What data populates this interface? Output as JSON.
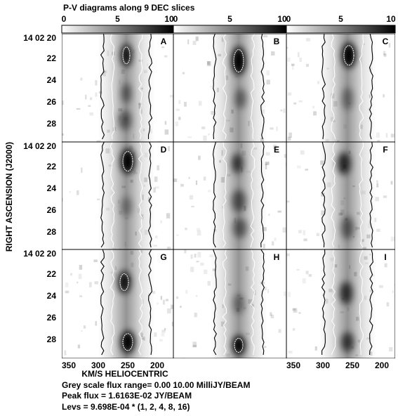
{
  "title": "P-V diagrams along 9 DEC slices",
  "colorbars": [
    {
      "labels": [
        "0",
        "5",
        "10"
      ]
    },
    {
      "labels": [
        "0",
        "5",
        "10"
      ]
    },
    {
      "labels": [
        "0",
        "5",
        "10"
      ]
    }
  ],
  "panels": [
    {
      "label": "A"
    },
    {
      "label": "B"
    },
    {
      "label": "C"
    },
    {
      "label": "D"
    },
    {
      "label": "E"
    },
    {
      "label": "F"
    },
    {
      "label": "G"
    },
    {
      "label": "H"
    },
    {
      "label": "I"
    }
  ],
  "y_axis": {
    "label": "RIGHT ASCENSION (J2000)",
    "rows": [
      [
        "14 02 20",
        "22",
        "24",
        "26",
        "28"
      ],
      [
        "14 02 20",
        "22",
        "24",
        "26",
        "28"
      ],
      [
        "14 02 20",
        "22",
        "24",
        "26",
        "28"
      ]
    ]
  },
  "x_axis": {
    "label": "KM/S HELIOCENTRIC",
    "columns": [
      [
        "350",
        "300",
        "250",
        "200"
      ],
      [
        "350",
        "300",
        "250",
        "200"
      ]
    ]
  },
  "notes": [
    "Grey scale flux range= 0.00 10.00 MilliJY/BEAM",
    "Peak flux =  1.6163E-02 JY/BEAM",
    "Levs = 9.698E-04 * (1, 2, 4, 8, 16)"
  ]
}
